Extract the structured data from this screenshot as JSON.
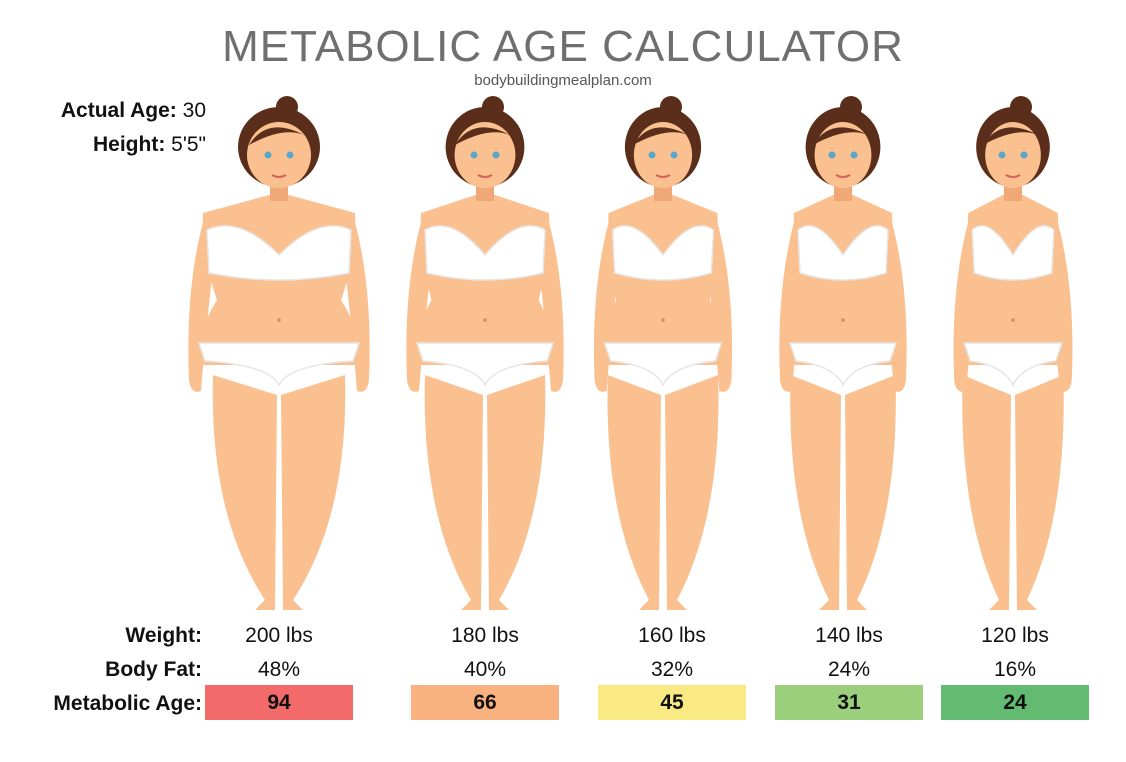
{
  "title": "METABOLIC AGE CALCULATOR",
  "subtitle": "bodybuildingmealplan.com",
  "info": {
    "age_label": "Actual Age:",
    "age_value": "30",
    "height_label": "Height:",
    "height_value": "5'5\""
  },
  "row_labels": {
    "weight": "Weight:",
    "body_fat": "Body Fat:",
    "metabolic_age": "Metabolic Age:"
  },
  "profiles": [
    {
      "weight": "200 lbs",
      "body_fat": "48%",
      "metabolic_age": "94",
      "color": "#f26a6a"
    },
    {
      "weight": "180 lbs",
      "body_fat": "40%",
      "metabolic_age": "66",
      "color": "#f9b27f"
    },
    {
      "weight": "160 lbs",
      "body_fat": "32%",
      "metabolic_age": "45",
      "color": "#f9ea83"
    },
    {
      "weight": "140 lbs",
      "body_fat": "24%",
      "metabolic_age": "31",
      "color": "#9ccf7c"
    },
    {
      "weight": "120 lbs",
      "body_fat": "16%",
      "metabolic_age": "24",
      "color": "#63bb72"
    }
  ],
  "colors": {
    "skin": "#fbc08f",
    "skin_shade": "#f0a878",
    "hair": "#5a2e1a",
    "underwear": "#ffffff",
    "eye": "#5aa7c9"
  }
}
